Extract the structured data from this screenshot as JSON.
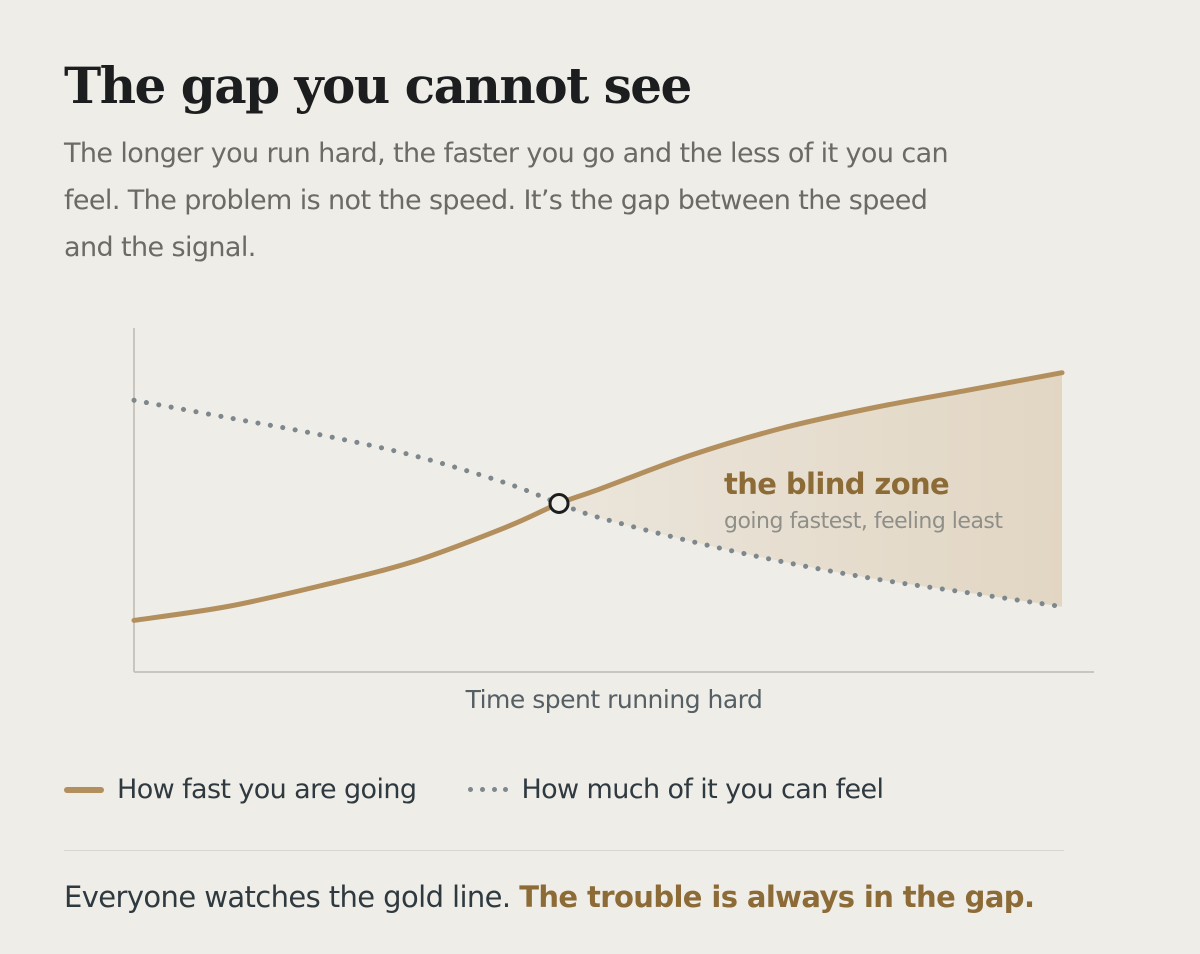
{
  "header": {
    "title": "The gap you cannot see",
    "subtitle": "The longer you run hard, the faster you go and the less of it you can feel. The problem is not the speed. It’s the gap between the speed and the signal."
  },
  "chart_data": {
    "type": "line",
    "xlabel": "Time spent running hard",
    "ylabel": "",
    "xlim": [
      0,
      1
    ],
    "ylim": [
      0,
      1
    ],
    "grid": false,
    "legend_position": "bottom-left",
    "series": [
      {
        "name": "How fast you are going",
        "style": "solid",
        "color": "#b38f5d",
        "x": [
          0,
          0.1,
          0.2,
          0.3,
          0.4,
          0.458,
          0.5,
          0.6,
          0.7,
          0.8,
          0.9,
          1.0
        ],
        "y": [
          0.15,
          0.19,
          0.25,
          0.32,
          0.42,
          0.49,
          0.53,
          0.63,
          0.71,
          0.77,
          0.82,
          0.87
        ]
      },
      {
        "name": "How much of it you can feel",
        "style": "dotted",
        "color": "#7d878c",
        "x": [
          0,
          0.1,
          0.2,
          0.3,
          0.4,
          0.458,
          0.5,
          0.6,
          0.7,
          0.8,
          0.9,
          1.0
        ],
        "y": [
          0.79,
          0.74,
          0.69,
          0.63,
          0.55,
          0.49,
          0.45,
          0.38,
          0.32,
          0.27,
          0.23,
          0.19
        ]
      }
    ],
    "crossover": {
      "x": 0.458,
      "y": 0.49
    },
    "annotation": {
      "title": "the blind zone",
      "subtitle": "going fastest, feeling least",
      "fill_color": "#e2d6c3"
    }
  },
  "legend": {
    "items": [
      {
        "label": "How fast you are going",
        "style": "solid"
      },
      {
        "label": "How much of it you can feel",
        "style": "dotted"
      }
    ]
  },
  "footer": {
    "text": "Everyone watches the gold line.",
    "emphasis": "The trouble is always in the gap."
  },
  "colors": {
    "background": "#efede8",
    "gold": "#b38f5d",
    "gray": "#7d878c",
    "accent_text": "#8c6b37"
  }
}
